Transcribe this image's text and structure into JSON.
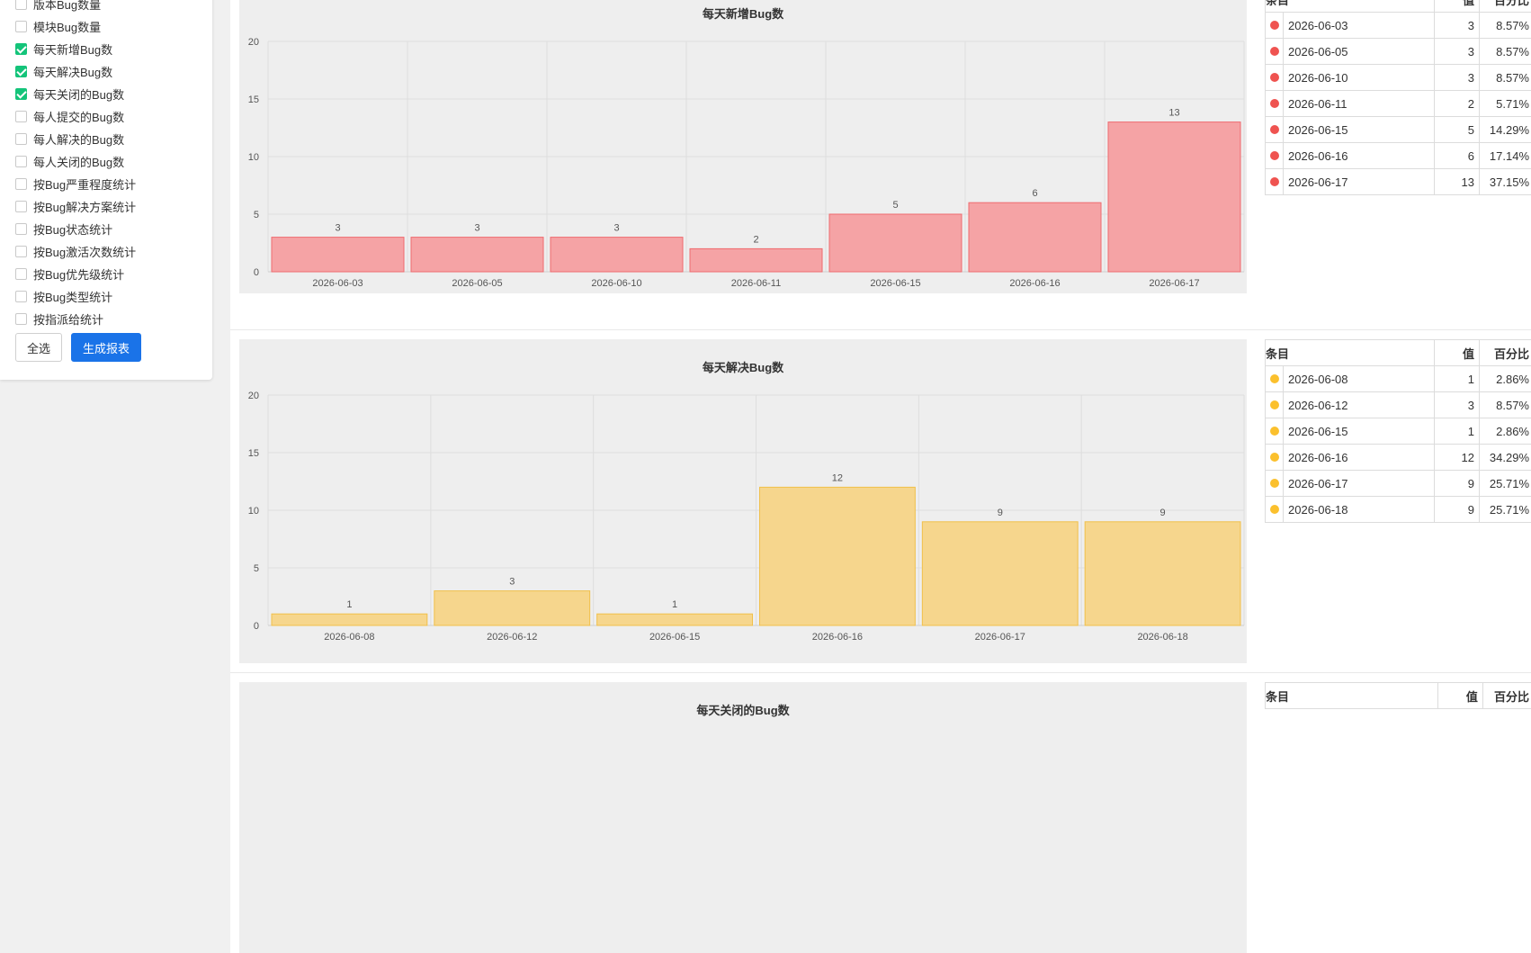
{
  "sidebar": {
    "options": [
      {
        "label": "版本Bug数量",
        "checked": false
      },
      {
        "label": "模块Bug数量",
        "checked": false
      },
      {
        "label": "每天新增Bug数",
        "checked": true
      },
      {
        "label": "每天解决Bug数",
        "checked": true
      },
      {
        "label": "每天关闭的Bug数",
        "checked": true
      },
      {
        "label": "每人提交的Bug数",
        "checked": false
      },
      {
        "label": "每人解决的Bug数",
        "checked": false
      },
      {
        "label": "每人关闭的Bug数",
        "checked": false
      },
      {
        "label": "按Bug严重程度统计",
        "checked": false
      },
      {
        "label": "按Bug解决方案统计",
        "checked": false
      },
      {
        "label": "按Bug状态统计",
        "checked": false
      },
      {
        "label": "按Bug激活次数统计",
        "checked": false
      },
      {
        "label": "按Bug优先级统计",
        "checked": false
      },
      {
        "label": "按Bug类型统计",
        "checked": false
      },
      {
        "label": "按指派给统计",
        "checked": false
      }
    ],
    "select_all_label": "全选",
    "generate_label": "生成报表"
  },
  "table_headers": {
    "item": "条目",
    "value": "值",
    "percent": "百分比"
  },
  "chart_data": [
    {
      "type": "bar",
      "title": "每天新增Bug数",
      "categories": [
        "2026-06-03",
        "2026-06-05",
        "2026-06-10",
        "2026-06-11",
        "2026-06-15",
        "2026-06-16",
        "2026-06-17"
      ],
      "values": [
        3,
        3,
        3,
        2,
        5,
        6,
        13
      ],
      "percents": [
        "8.57%",
        "8.57%",
        "8.57%",
        "5.71%",
        "14.29%",
        "17.14%",
        "37.15%"
      ],
      "ylim": [
        0,
        20
      ],
      "yticks": [
        0,
        5,
        10,
        15,
        20
      ],
      "grid": true,
      "bar_fill": "#f5a3a5",
      "bar_stroke": "#ef6b6f",
      "dot_color": "#ef5350"
    },
    {
      "type": "bar",
      "title": "每天解决Bug数",
      "categories": [
        "2026-06-08",
        "2026-06-12",
        "2026-06-15",
        "2026-06-16",
        "2026-06-17",
        "2026-06-18"
      ],
      "values": [
        1,
        3,
        1,
        12,
        9,
        9
      ],
      "percents": [
        "2.86%",
        "8.57%",
        "2.86%",
        "34.29%",
        "25.71%",
        "25.71%"
      ],
      "ylim": [
        0,
        20
      ],
      "yticks": [
        0,
        5,
        10,
        15,
        20
      ],
      "grid": true,
      "bar_fill": "#f6d68d",
      "bar_stroke": "#f1c04a",
      "dot_color": "#fbc02d"
    },
    {
      "type": "bar",
      "title": "每天关闭的Bug数",
      "categories": [],
      "values": [],
      "percents": [],
      "grid": false
    }
  ]
}
